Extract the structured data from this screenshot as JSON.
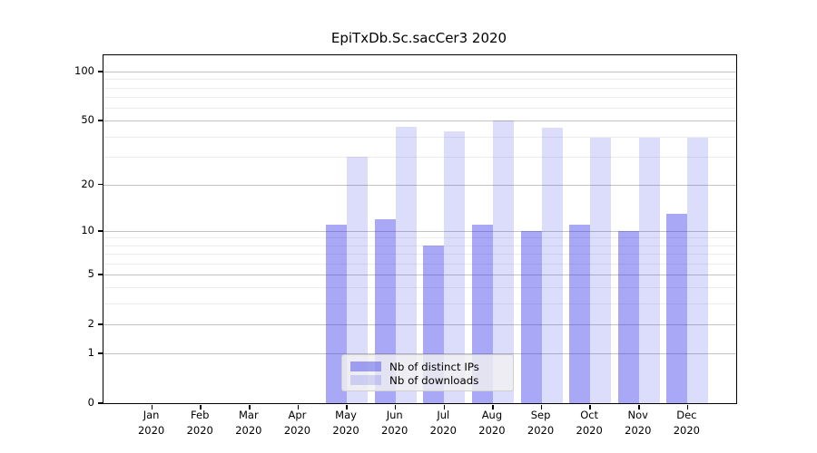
{
  "chart_data": {
    "type": "bar",
    "title": "EpiTxDb.Sc.sacCer3 2020",
    "categories": [
      "Jan 2020",
      "Feb 2020",
      "Mar 2020",
      "Apr 2020",
      "May 2020",
      "Jun 2020",
      "Jul 2020",
      "Aug 2020",
      "Sep 2020",
      "Oct 2020",
      "Nov 2020",
      "Dec 2020"
    ],
    "series": [
      {
        "name": "Nb of distinct IPs",
        "values": [
          0,
          0,
          0,
          0,
          11,
          12,
          8,
          11,
          10,
          11,
          10,
          13
        ],
        "color": "#a6a6f2",
        "fill": "rgba(47,47,234,0.42)"
      },
      {
        "name": "Nb of downloads",
        "values": [
          0,
          0,
          0,
          0,
          30,
          46,
          43,
          50,
          45,
          39,
          39,
          39
        ],
        "color": "#dbdbf8",
        "fill": "rgba(47,47,234,0.17)"
      }
    ],
    "yscale": "log1p",
    "ylim": [
      0,
      126
    ],
    "yticks": [
      0,
      1,
      2,
      5,
      10,
      20,
      50,
      100
    ],
    "yticks_minor": [
      3,
      4,
      6,
      7,
      8,
      9,
      30,
      40,
      60,
      70,
      80,
      90
    ],
    "grid": true,
    "xlabel": "",
    "ylabel": "",
    "legend_position": "lower center",
    "colors": {
      "axis": "#000000",
      "grid_major": "#c3c3c3",
      "grid_minor": "#ededed",
      "background": "#ffffff"
    }
  }
}
